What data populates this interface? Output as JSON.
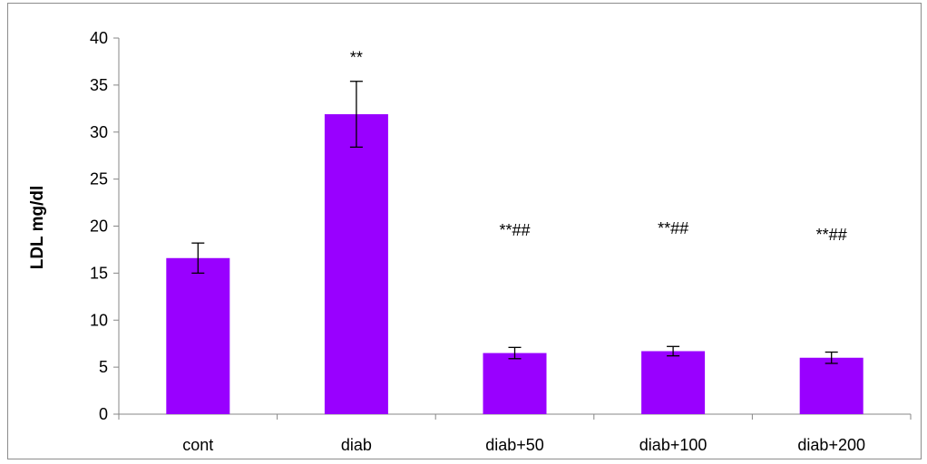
{
  "chart_data": {
    "type": "bar",
    "title": "",
    "xlabel": "",
    "ylabel": "LDL mg/dl",
    "categories": [
      "cont",
      "diab",
      "diab+50",
      "diab+100",
      "diab+200"
    ],
    "values": [
      16.6,
      31.9,
      6.5,
      6.7,
      6.0
    ],
    "error": [
      1.6,
      3.5,
      0.6,
      0.5,
      0.6
    ],
    "annotations": [
      "",
      "**",
      "**##",
      "**##",
      "**##"
    ],
    "ylim": [
      0,
      40
    ],
    "yticks": [
      0,
      5,
      10,
      15,
      20,
      25,
      30,
      35,
      40
    ],
    "grid": false,
    "legend": "none",
    "colors": {
      "bar": "#9900ff",
      "axis": "#878787",
      "error": "#000000"
    }
  }
}
